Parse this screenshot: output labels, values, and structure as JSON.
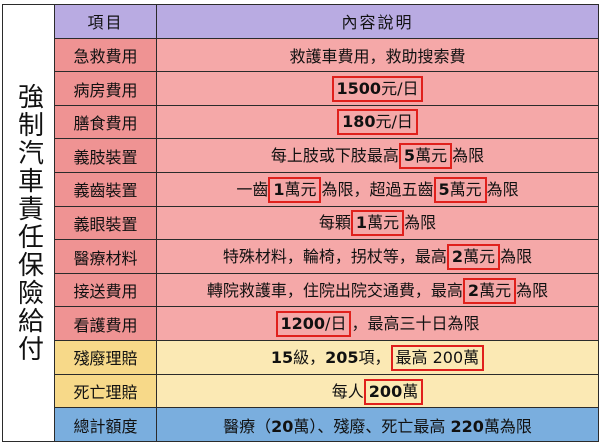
{
  "side_label": "強制汽車責任保險給付",
  "header": {
    "item": "項目",
    "content": "內容說明"
  },
  "rows": [
    {
      "label": "急救費用",
      "parts": [
        {
          "t": "救護車費用，救助搜索費"
        }
      ]
    },
    {
      "label": "病房費用",
      "parts": [
        {
          "t": "1500",
          "hl": true,
          "b": true,
          "tail": "元/日"
        }
      ]
    },
    {
      "label": "膳食費用",
      "parts": [
        {
          "t": "180",
          "hl": true,
          "b": true,
          "tail": "元/日"
        }
      ]
    },
    {
      "label": "義肢裝置",
      "parts": [
        {
          "t": "每上肢或下肢最高"
        },
        {
          "t": "5",
          "hl": true,
          "b": true,
          "tail": "萬元"
        },
        {
          "t": "為限"
        }
      ]
    },
    {
      "label": "義齒裝置",
      "parts": [
        {
          "t": "一齒"
        },
        {
          "t": "1",
          "hl": true,
          "b": true,
          "tail": "萬元"
        },
        {
          "t": "為限，超過五齒"
        },
        {
          "t": "5",
          "hl": true,
          "b": true,
          "tail": "萬元"
        },
        {
          "t": "為限"
        }
      ]
    },
    {
      "label": "義眼裝置",
      "parts": [
        {
          "t": "每顆"
        },
        {
          "t": "1",
          "hl": true,
          "b": true,
          "tail": "萬元"
        },
        {
          "t": "為限"
        }
      ]
    },
    {
      "label": "醫療材料",
      "parts": [
        {
          "t": "特殊材料，輪椅，拐杖等，最高"
        },
        {
          "t": "2",
          "hl": true,
          "b": true,
          "tail": "萬元"
        },
        {
          "t": "為限"
        }
      ]
    },
    {
      "label": "接送費用",
      "parts": [
        {
          "t": "轉院救護車，住院出院交通費，最高"
        },
        {
          "t": "2",
          "hl": true,
          "b": true,
          "tail": "萬元"
        },
        {
          "t": "為限"
        }
      ]
    },
    {
      "label": "看護費用",
      "parts": [
        {
          "t": "1200",
          "hl": true,
          "b": true,
          "tail": "/日"
        },
        {
          "t": "，最高三十日為限"
        }
      ]
    },
    {
      "label": "殘廢理賠",
      "style": "yel",
      "parts": [
        {
          "t": "15",
          "b": true
        },
        {
          "t": "級，"
        },
        {
          "t": "205",
          "b": true
        },
        {
          "t": "項，"
        },
        {
          "t": "最高 200萬",
          "hl": true,
          "b": false
        }
      ]
    },
    {
      "label": "死亡理賠",
      "style": "yel",
      "parts": [
        {
          "t": "每人"
        },
        {
          "t": "200",
          "hl": true,
          "b": true,
          "tail": "萬"
        }
      ]
    },
    {
      "label": "總計額度",
      "style": "blue",
      "parts": [
        {
          "t": "醫療（"
        },
        {
          "t": "20",
          "b": true
        },
        {
          "t": "萬）、殘廢、死亡最高 "
        },
        {
          "t": "220",
          "b": true
        },
        {
          "t": "萬為限"
        }
      ]
    }
  ],
  "colors": {
    "accent_border": "#e0201c",
    "side_text": "#2aa3d6",
    "header_bg": "#b9abe2"
  }
}
